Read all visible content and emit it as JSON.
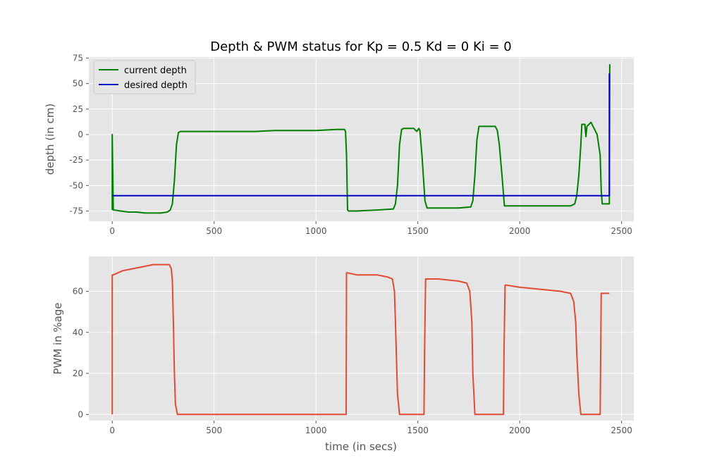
{
  "chart_data": [
    {
      "type": "line",
      "title": "Depth & PWM status for Kp = 0.5 Kd = 0 Ki = 0",
      "xlabel": "",
      "ylabel": "depth (in cm)",
      "xlim": [
        -115,
        2560
      ],
      "ylim": [
        -85,
        76
      ],
      "xticks": [
        0,
        500,
        1000,
        1500,
        2000,
        2500
      ],
      "yticks": [
        -75,
        -50,
        -25,
        0,
        25,
        50,
        75
      ],
      "grid": true,
      "legend": "top-left",
      "series": [
        {
          "name": "current depth",
          "color": "#008000",
          "x": [
            0,
            0,
            5,
            10,
            40,
            80,
            120,
            160,
            200,
            240,
            270,
            285,
            295,
            305,
            315,
            325,
            335,
            400,
            500,
            600,
            700,
            800,
            900,
            1000,
            1100,
            1140,
            1145,
            1150,
            1155,
            1160,
            1200,
            1300,
            1380,
            1390,
            1400,
            1410,
            1420,
            1430,
            1480,
            1495,
            1505,
            1510,
            1520,
            1535,
            1545,
            1600,
            1700,
            1760,
            1770,
            1780,
            1790,
            1800,
            1860,
            1880,
            1890,
            1900,
            1915,
            1925,
            1935,
            2000,
            2100,
            2200,
            2250,
            2270,
            2280,
            2290,
            2300,
            2305,
            2320,
            2325,
            2330,
            2340,
            2350,
            2360,
            2380,
            2395,
            2400,
            2405,
            2440,
            2442
          ],
          "y": [
            -74,
            0,
            -74,
            -74,
            -75,
            -76,
            -76,
            -77,
            -77,
            -77,
            -76,
            -74,
            -68,
            -45,
            -10,
            2,
            3,
            3,
            3,
            3,
            3,
            4,
            4,
            4,
            5,
            5,
            3,
            -20,
            -74,
            -75,
            -75,
            -74,
            -73,
            -68,
            -50,
            -10,
            5,
            6,
            6,
            3,
            6,
            4,
            -20,
            -65,
            -72,
            -72,
            -72,
            -71,
            -65,
            -40,
            -5,
            8,
            8,
            8,
            4,
            -10,
            -45,
            -70,
            -70,
            -70,
            -70,
            -70,
            -70,
            -68,
            -60,
            -40,
            -10,
            10,
            10,
            -2,
            8,
            10,
            12,
            8,
            0,
            -20,
            -55,
            -68,
            -68,
            69
          ]
        },
        {
          "name": "desired depth",
          "color": "#0000c8",
          "x": [
            0,
            2440,
            2440
          ],
          "y": [
            -60,
            -60,
            60
          ]
        }
      ]
    },
    {
      "type": "line",
      "title": "",
      "xlabel": "time (in secs)",
      "ylabel": "PWM in %age",
      "xlim": [
        -115,
        2560
      ],
      "ylim": [
        -3,
        77
      ],
      "xticks": [
        0,
        500,
        1000,
        1500,
        2000,
        2500
      ],
      "yticks": [
        0,
        20,
        40,
        60
      ],
      "grid": true,
      "series": [
        {
          "name": "",
          "color": "#e24a33",
          "x": [
            0,
            0,
            5,
            50,
            100,
            150,
            200,
            250,
            280,
            290,
            295,
            300,
            305,
            310,
            320,
            330,
            1140,
            1148,
            1150,
            1155,
            1200,
            1300,
            1350,
            1375,
            1385,
            1390,
            1400,
            1410,
            1530,
            1533,
            1538,
            1545,
            1600,
            1700,
            1740,
            1755,
            1765,
            1770,
            1780,
            1920,
            1923,
            1928,
            1935,
            2000,
            2100,
            2200,
            2250,
            2265,
            2275,
            2280,
            2290,
            2300,
            2395,
            2400,
            2410,
            2440
          ],
          "y": [
            0,
            68,
            68,
            70,
            71,
            72,
            73,
            73,
            73,
            71,
            65,
            45,
            20,
            5,
            0,
            0,
            0,
            0,
            69,
            69,
            68,
            68,
            67,
            66,
            60,
            45,
            10,
            0,
            0,
            30,
            66,
            66,
            66,
            65,
            64,
            60,
            45,
            20,
            0,
            0,
            30,
            63,
            63,
            62,
            61,
            60,
            59,
            55,
            45,
            30,
            10,
            0,
            0,
            59,
            59,
            59
          ]
        }
      ]
    }
  ]
}
